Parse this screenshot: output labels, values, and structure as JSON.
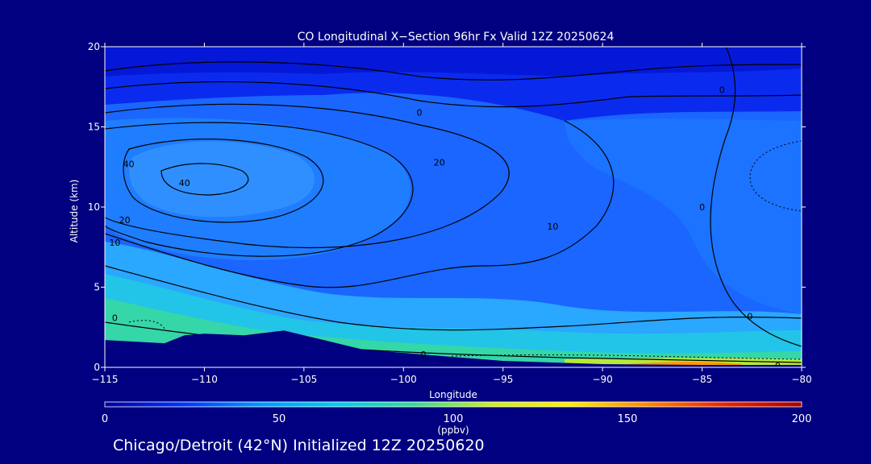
{
  "chart_data": {
    "type": "heatmap",
    "title": "CO Longitudinal X−Section 96hr  Fx Valid 12Z 20250624",
    "xlabel": "Longitude",
    "ylabel": "Altitude (km)",
    "xlim": [
      -115,
      -80
    ],
    "ylim": [
      0,
      20
    ],
    "x_ticks": [
      -115,
      -110,
      -105,
      -100,
      -95,
      -90,
      -85,
      -80
    ],
    "x_tick_labels": [
      "−115",
      "−110",
      "−105",
      "−100",
      "−95",
      "−90",
      "−85",
      "−80"
    ],
    "y_ticks": [
      0,
      5,
      10,
      15,
      20
    ],
    "y_tick_labels": [
      "0",
      "5",
      "10",
      "15",
      "20"
    ],
    "colorbar": {
      "min": 0,
      "max": 200,
      "ticks": [
        0,
        50,
        100,
        150,
        200
      ],
      "tick_labels": [
        "0",
        "50",
        "100",
        "150",
        "200"
      ],
      "unit": "(ppbv)",
      "colors": [
        "#0000a0",
        "#0033ff",
        "#0099ff",
        "#00ccee",
        "#33dd99",
        "#ccee22",
        "#ffee00",
        "#ff8800",
        "#ee2200",
        "#aa0000"
      ]
    },
    "contour_labels": [
      {
        "text": "0",
        "lon": -99.2,
        "alt": 15.9
      },
      {
        "text": "0",
        "lon": -84.0,
        "alt": 17.3
      },
      {
        "text": "20",
        "lon": -98.2,
        "alt": 12.8
      },
      {
        "text": "40",
        "lon": -113.8,
        "alt": 12.7
      },
      {
        "text": "40",
        "lon": -111.0,
        "alt": 11.5
      },
      {
        "text": "20",
        "lon": -114.0,
        "alt": 9.2
      },
      {
        "text": "10",
        "lon": -114.5,
        "alt": 7.8
      },
      {
        "text": "10",
        "lon": -92.5,
        "alt": 8.8
      },
      {
        "text": "0",
        "lon": -85.0,
        "alt": 10.0
      },
      {
        "text": "0",
        "lon": -114.5,
        "alt": 3.1
      },
      {
        "text": "0",
        "lon": -82.6,
        "alt": 3.2
      },
      {
        "text": "0",
        "lon": -99.0,
        "alt": 0.8
      },
      {
        "text": "0",
        "lon": -81.2,
        "alt": 0.1
      }
    ],
    "terrain_km": [
      {
        "lon": -115,
        "alt": 1.7
      },
      {
        "lon": -112,
        "alt": 1.5
      },
      {
        "lon": -111,
        "alt": 2.0
      },
      {
        "lon": -110,
        "alt": 2.1
      },
      {
        "lon": -108,
        "alt": 2.0
      },
      {
        "lon": -106,
        "alt": 2.3
      },
      {
        "lon": -104,
        "alt": 1.7
      },
      {
        "lon": -102,
        "alt": 1.1
      },
      {
        "lon": -98,
        "alt": 0.7
      },
      {
        "lon": -95,
        "alt": 0.4
      },
      {
        "lon": -90,
        "alt": 0.2
      },
      {
        "lon": -85,
        "alt": 0.15
      },
      {
        "lon": -80,
        "alt": 0.15
      }
    ]
  },
  "footer": "Chicago/Detroit (42°N) Initialized 12Z 20250620"
}
